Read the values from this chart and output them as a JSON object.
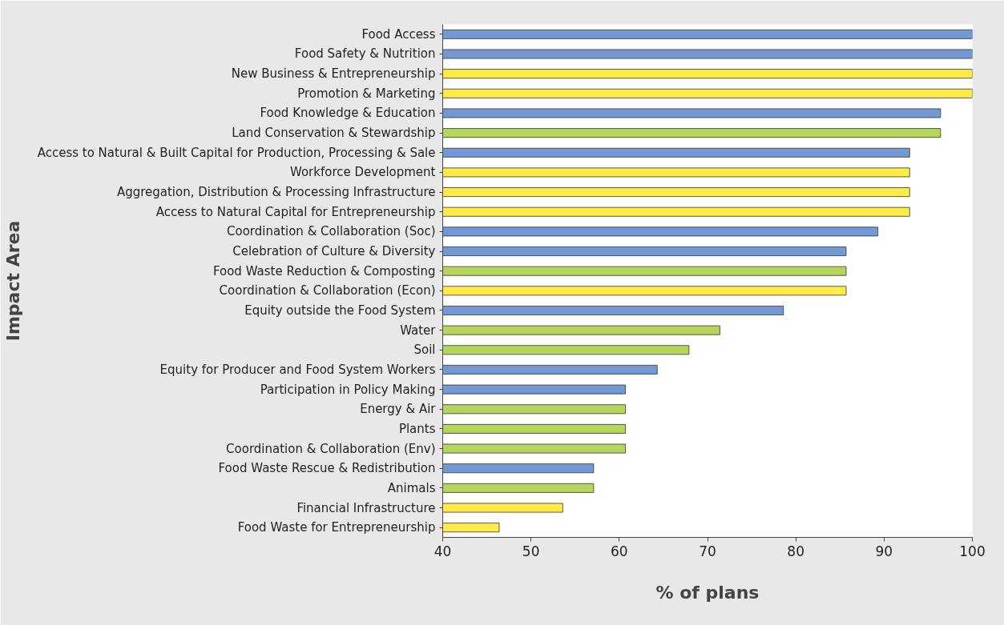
{
  "chart_data": {
    "type": "bar",
    "orientation": "horizontal",
    "xlabel": "% of plans",
    "ylabel": "Impact Area",
    "categories": [
      "Food Access",
      "Food Safety & Nutrition",
      "New Business & Entrepreneurship",
      "Promotion & Marketing",
      "Food Knowledge & Education",
      "Land Conservation & Stewardship",
      "Access to Natural & Built Capital for Production, Processing & Sale",
      "Workforce Development",
      "Aggregation, Distribution & Processing Infrastructure",
      "Access to Natural Capital for Entrepreneurship",
      "Coordination & Collaboration (Soc)",
      "Celebration of Culture & Diversity",
      "Food Waste Reduction & Composting",
      "Coordination & Collaboration (Econ)",
      "Equity outside the Food System",
      "Water",
      "Soil",
      "Equity for Producer and Food System Workers",
      "Participation in Policy Making",
      "Energy & Air",
      "Plants",
      "Coordination & Collaboration (Env)",
      "Food Waste Rescue & Redistribution",
      "Animals",
      "Financial Infrastructure",
      "Food Waste for Entrepreneurship"
    ],
    "values": [
      100,
      100,
      100,
      100,
      96.4,
      96.4,
      92.9,
      92.9,
      92.9,
      92.9,
      89.3,
      85.7,
      85.7,
      85.7,
      78.6,
      71.4,
      67.9,
      64.3,
      60.7,
      60.7,
      60.7,
      60.7,
      57.1,
      57.1,
      53.6,
      46.4
    ],
    "colors": [
      "#7299d3",
      "#7299d3",
      "#ffeb47",
      "#ffeb47",
      "#7299d3",
      "#b5d65c",
      "#7299d3",
      "#ffeb47",
      "#ffeb47",
      "#ffeb47",
      "#7299d3",
      "#7299d3",
      "#b5d65c",
      "#ffeb47",
      "#7299d3",
      "#b5d65c",
      "#b5d65c",
      "#7299d3",
      "#7299d3",
      "#b5d65c",
      "#b5d65c",
      "#b5d65c",
      "#7299d3",
      "#b5d65c",
      "#ffeb47",
      "#ffeb47"
    ],
    "xlim": [
      40,
      100
    ],
    "xticks": [
      40,
      50,
      60,
      70,
      80,
      90,
      100
    ],
    "grid": false
  }
}
